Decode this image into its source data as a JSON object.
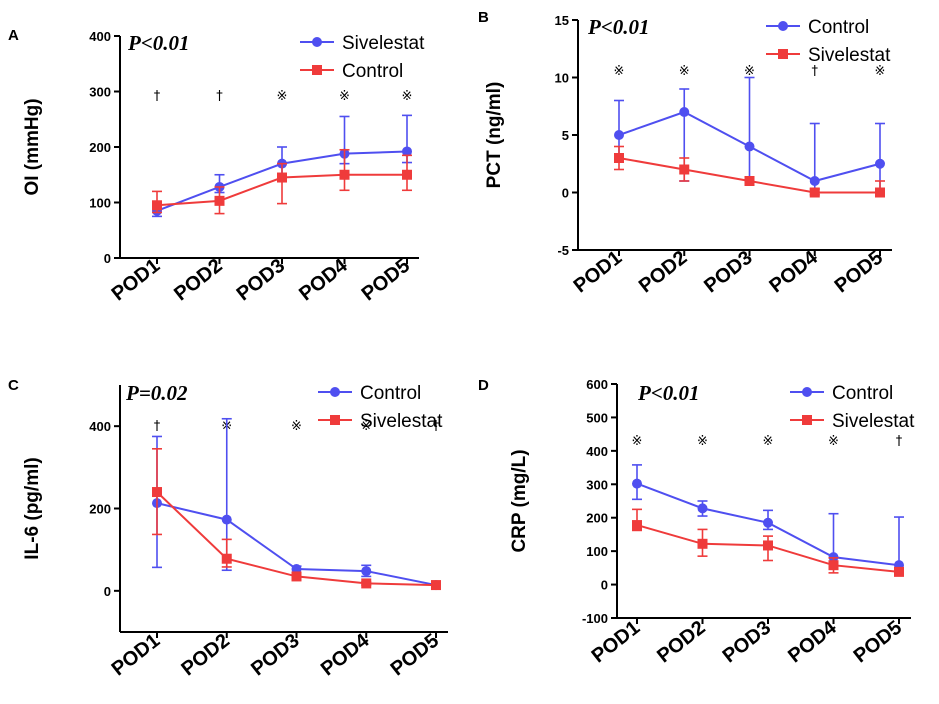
{
  "chart_data": [
    {
      "panel": "A",
      "type": "line",
      "title": "",
      "xlabel": "",
      "ylabel": "OI (mmHg)",
      "ylim": [
        0,
        400
      ],
      "yticks": [
        "0",
        "100",
        "200",
        "300",
        "400"
      ],
      "categories": [
        "POD1",
        "POD2",
        "POD3",
        "POD4",
        "POD5"
      ],
      "annotation": "P<0.01",
      "significance": [
        "†",
        "†",
        "※",
        "※",
        "※"
      ],
      "legend_position": "top-right",
      "series": [
        {
          "name": "Sivelestat",
          "color": "#4f4ff0",
          "marker": "circle",
          "values": [
            85,
            128,
            170,
            188,
            192
          ],
          "err_low": [
            75,
            118,
            150,
            170,
            172
          ],
          "err_high": [
            95,
            150,
            200,
            255,
            257
          ]
        },
        {
          "name": "Control",
          "color": "#ef3b3b",
          "marker": "square",
          "values": [
            95,
            103,
            145,
            150,
            150
          ],
          "err_low": [
            82,
            80,
            98,
            122,
            122
          ],
          "err_high": [
            120,
            128,
            170,
            195,
            185
          ]
        }
      ]
    },
    {
      "panel": "B",
      "type": "line",
      "title": "",
      "xlabel": "",
      "ylabel": "PCT (ng/ml)",
      "ylim": [
        -5,
        15
      ],
      "yticks": [
        "-5",
        "0",
        "5",
        "10",
        "15"
      ],
      "categories": [
        "POD1",
        "POD2",
        "POD3",
        "POD4",
        "POD5"
      ],
      "annotation": "P<0.01",
      "significance": [
        "※",
        "※",
        "※",
        "†",
        "※"
      ],
      "legend_position": "top-right",
      "series": [
        {
          "name": "Control",
          "color": "#4f4ff0",
          "marker": "circle",
          "values": [
            5,
            7,
            4,
            1,
            2.5
          ],
          "err_low": [
            3,
            1,
            1,
            0,
            0
          ],
          "err_high": [
            8,
            9,
            10,
            6,
            6
          ]
        },
        {
          "name": "Sivelestat",
          "color": "#ef3b3b",
          "marker": "square",
          "values": [
            3,
            2,
            1,
            0,
            0
          ],
          "err_low": [
            2,
            1,
            0.8,
            -0.2,
            -0.2
          ],
          "err_high": [
            4,
            3,
            1.2,
            0.3,
            1
          ]
        }
      ]
    },
    {
      "panel": "C",
      "type": "line",
      "title": "",
      "xlabel": "",
      "ylabel": "IL-6 (pg/ml)",
      "ylim": [
        -100,
        500
      ],
      "yticks": [
        "0",
        "200",
        "400"
      ],
      "categories": [
        "POD1",
        "POD2",
        "POD3",
        "POD4",
        "POD5"
      ],
      "annotation": "P=0.02",
      "significance": [
        "†",
        "※",
        "※",
        "※",
        "†"
      ],
      "legend_position": "top-right",
      "series": [
        {
          "name": "Control",
          "color": "#4f4ff0",
          "marker": "circle",
          "values": [
            213,
            173,
            53,
            48,
            14
          ],
          "err_low": [
            57,
            50,
            45,
            35,
            10
          ],
          "err_high": [
            375,
            418,
            60,
            62,
            18
          ]
        },
        {
          "name": "Sivelestat",
          "color": "#ef3b3b",
          "marker": "square",
          "values": [
            240,
            78,
            35,
            18,
            14
          ],
          "err_low": [
            137,
            58,
            28,
            14,
            10
          ],
          "err_high": [
            345,
            125,
            42,
            22,
            18
          ]
        }
      ]
    },
    {
      "panel": "D",
      "type": "line",
      "title": "",
      "xlabel": "",
      "ylabel": "CRP (mg/L)",
      "ylim": [
        -100,
        600
      ],
      "yticks": [
        "-100",
        "0",
        "100",
        "200",
        "300",
        "400",
        "500",
        "600"
      ],
      "categories": [
        "POD1",
        "POD2",
        "POD3",
        "POD4",
        "POD5"
      ],
      "annotation": "P<0.01",
      "significance": [
        "※",
        "※",
        "※",
        "※",
        "†"
      ],
      "legend_position": "top-right",
      "series": [
        {
          "name": "Control",
          "color": "#4f4ff0",
          "marker": "circle",
          "values": [
            302,
            228,
            185,
            82,
            58
          ],
          "err_low": [
            255,
            205,
            165,
            50,
            45
          ],
          "err_high": [
            358,
            250,
            222,
            212,
            202
          ]
        },
        {
          "name": "Sivelestat",
          "color": "#ef3b3b",
          "marker": "square",
          "values": [
            178,
            122,
            117,
            58,
            38
          ],
          "err_low": [
            162,
            85,
            72,
            35,
            28
          ],
          "err_high": [
            225,
            165,
            145,
            80,
            50
          ]
        }
      ]
    }
  ]
}
